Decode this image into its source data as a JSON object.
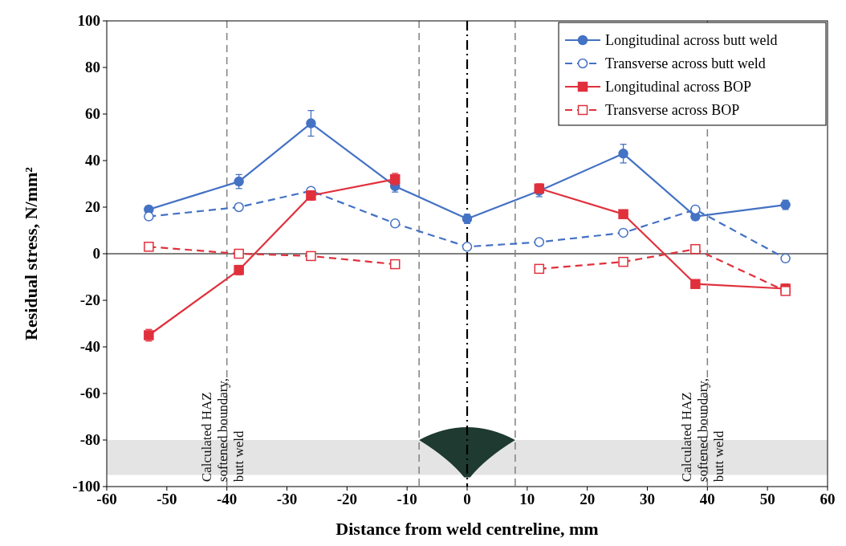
{
  "chart_data": {
    "type": "line",
    "xlabel": "Distance from weld centreline, mm",
    "ylabel": "Residual stress, N/mm²",
    "xlim": [
      -60,
      60
    ],
    "xticks": [
      -60,
      -50,
      -40,
      -30,
      -20,
      -10,
      0,
      10,
      20,
      30,
      40,
      50,
      60
    ],
    "ylim": [
      -100,
      100
    ],
    "yticks": [
      -100,
      -80,
      -60,
      -40,
      -20,
      0,
      20,
      40,
      60,
      80,
      100
    ],
    "grid": false,
    "legend": "top right",
    "series": [
      {
        "name": "Longitudinal across butt weld",
        "color": "#4472c4",
        "marker": "circle",
        "line_style": "solid",
        "x": [
          -53,
          -38,
          -26,
          -12,
          0,
          12,
          26,
          38,
          53
        ],
        "values": [
          19,
          31,
          56,
          29,
          15,
          27,
          43,
          16,
          21
        ],
        "errors": [
          1.5,
          3,
          5.5,
          2.5,
          2,
          2.5,
          4,
          1.5,
          2
        ]
      },
      {
        "name": "Transverse across butt weld",
        "color": "#4472c4",
        "marker": "circle",
        "line_style": "dashed",
        "x": [
          -53,
          -38,
          -26,
          -12,
          0,
          12,
          26,
          38,
          53
        ],
        "values": [
          16,
          20,
          27,
          13,
          3,
          5,
          9,
          19,
          -2
        ]
      },
      {
        "name": "Longitudinal across BOP",
        "color": "#e0303c",
        "marker": "square",
        "line_style": "solid",
        "x": [
          -53,
          -38,
          -26,
          -12,
          0,
          12,
          26,
          38,
          53
        ],
        "values": [
          -35,
          -7,
          25,
          32,
          null,
          28,
          17,
          -13,
          -15
        ],
        "errors": [
          2.5,
          2,
          2,
          2.5,
          null,
          2,
          1.5,
          1,
          2
        ]
      },
      {
        "name": "Transverse across BOP",
        "color": "#e0303c",
        "marker": "square",
        "line_style": "dashed",
        "x": [
          -53,
          -38,
          -26,
          -12,
          0,
          12,
          26,
          38,
          53
        ],
        "values": [
          3,
          0,
          -1,
          -4.5,
          null,
          -6.5,
          -3.5,
          2,
          -16
        ]
      }
    ],
    "ref_lines": [
      {
        "axis": "y",
        "value": 0,
        "color": "#000000",
        "line_style": "solid"
      },
      {
        "axis": "x",
        "value": -40,
        "label": "Calculated HAZ\nsoftened boundary,\nbutt weld",
        "color": "#808080",
        "line_style": "dashed"
      },
      {
        "axis": "x",
        "value": 40,
        "label": "Calculated HAZ\nsoftened boundary,\nbutt weld",
        "color": "#808080",
        "line_style": "dashed"
      },
      {
        "axis": "x",
        "value": -8,
        "color": "#808080",
        "line_style": "dashed"
      },
      {
        "axis": "x",
        "value": 8,
        "color": "#808080",
        "line_style": "dashed"
      },
      {
        "axis": "x",
        "value": 0,
        "color": "#000000",
        "line_style": "dashdot"
      }
    ],
    "bands": [
      {
        "axis": "y",
        "from": -95,
        "to": -80,
        "color": "#e4e4e4"
      }
    ]
  }
}
